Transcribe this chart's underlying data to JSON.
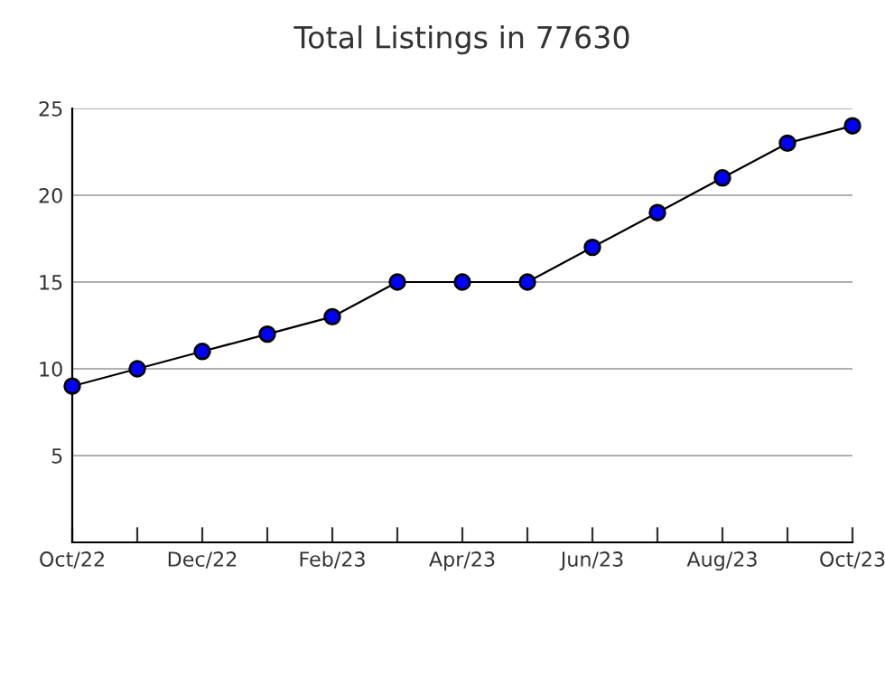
{
  "chart_data": {
    "type": "line",
    "title": "Total Listings in 77630",
    "categories": [
      "Oct/22",
      null,
      "Dec/22",
      null,
      "Feb/23",
      null,
      "Apr/23",
      null,
      "Jun/23",
      null,
      "Aug/23",
      null,
      "Oct/23"
    ],
    "series": [
      {
        "color": "#0000ff",
        "values": [
          9,
          10,
          11,
          12,
          13,
          15,
          15,
          15,
          17,
          19,
          21,
          23,
          24
        ]
      }
    ],
    "ylim": [
      0,
      25
    ],
    "yticks": [
      5,
      10,
      15,
      20,
      25
    ],
    "grid": "y",
    "marker": "circle",
    "line_style": "solid"
  }
}
